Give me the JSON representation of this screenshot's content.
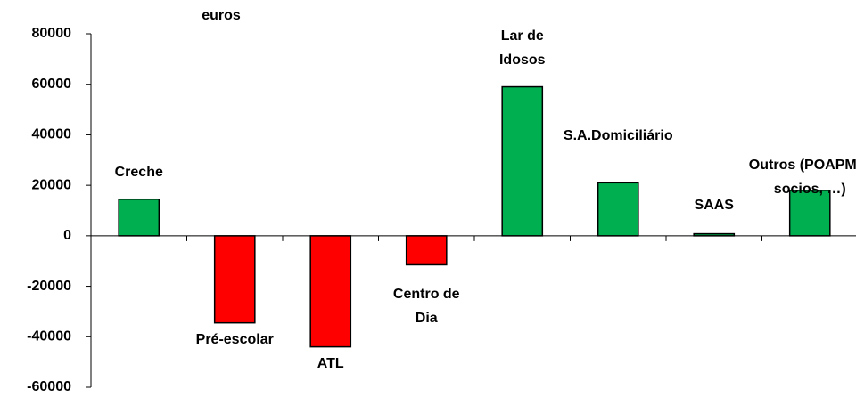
{
  "chart_data": {
    "type": "bar",
    "y_label": "euros",
    "categories": [
      "Creche",
      "Pré-escolar",
      "ATL",
      "Centro de Dia",
      "Lar de Idosos",
      "S.A.Domiciliário",
      "SAAS",
      "Outros (POAPMC, socios, …)"
    ],
    "values": [
      14500,
      -34500,
      -44000,
      -11500,
      59000,
      21000,
      800,
      18000
    ],
    "colors": [
      "#00b050",
      "#ff0000",
      "#ff0000",
      "#ff0000",
      "#00b050",
      "#00b050",
      "#00b050",
      "#00b050"
    ],
    "ylim": [
      -60000,
      80000
    ],
    "yticks": [
      -60000,
      -40000,
      -20000,
      0,
      20000,
      40000,
      60000,
      80000
    ]
  }
}
